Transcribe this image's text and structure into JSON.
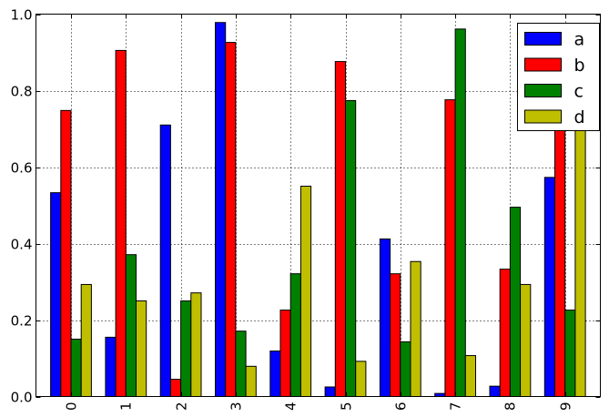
{
  "chart_data": {
    "type": "bar",
    "title": "",
    "xlabel": "",
    "ylabel": "",
    "ylim": [
      0.0,
      1.0
    ],
    "grid": true,
    "legend_position": "upper right",
    "categories": [
      "0",
      "1",
      "2",
      "3",
      "4",
      "5",
      "6",
      "7",
      "8",
      "9"
    ],
    "yticks": [
      "0.0",
      "0.2",
      "0.4",
      "0.6",
      "0.8",
      "1.0"
    ],
    "series": [
      {
        "name": "a",
        "color": "#0000ff",
        "values": [
          0.533,
          0.155,
          0.71,
          0.978,
          0.119,
          0.025,
          0.412,
          0.008,
          0.027,
          0.573
        ]
      },
      {
        "name": "b",
        "color": "#ff0000",
        "values": [
          0.748,
          0.905,
          0.045,
          0.926,
          0.226,
          0.876,
          0.321,
          0.776,
          0.333,
          0.73
        ]
      },
      {
        "name": "c",
        "color": "#008000",
        "values": [
          0.15,
          0.371,
          0.25,
          0.171,
          0.321,
          0.774,
          0.143,
          0.961,
          0.495,
          0.226
        ]
      },
      {
        "name": "d",
        "color": "#bfbf00",
        "values": [
          0.293,
          0.25,
          0.271,
          0.079,
          0.55,
          0.092,
          0.353,
          0.107,
          0.293,
          0.72
        ]
      }
    ]
  }
}
